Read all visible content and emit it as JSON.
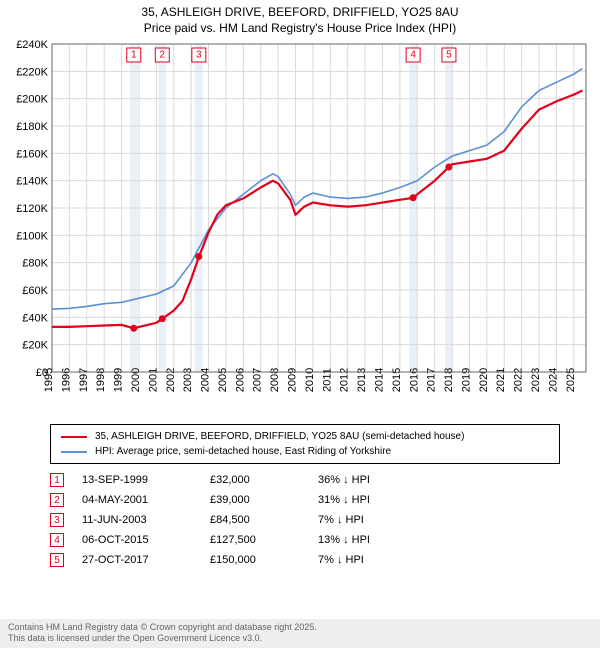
{
  "title_line1": "35, ASHLEIGH DRIVE, BEEFORD, DRIFFIELD, YO25 8AU",
  "title_line2": "Price paid vs. HM Land Registry's House Price Index (HPI)",
  "chart": {
    "type": "line",
    "background_color": "#ffffff",
    "grid_color": "#d9d9d9",
    "axis_color": "#666666",
    "x_years": [
      1995,
      1996,
      1997,
      1998,
      1999,
      2000,
      2001,
      2002,
      2003,
      2004,
      2005,
      2006,
      2007,
      2008,
      2009,
      2010,
      2011,
      2012,
      2013,
      2014,
      2015,
      2016,
      2017,
      2018,
      2019,
      2020,
      2021,
      2022,
      2023,
      2024,
      2025
    ],
    "y_ticks": [
      0,
      20000,
      40000,
      60000,
      80000,
      100000,
      120000,
      140000,
      160000,
      180000,
      200000,
      220000,
      240000
    ],
    "y_tick_labels": [
      "£0",
      "£20K",
      "£40K",
      "£60K",
      "£80K",
      "£100K",
      "£120K",
      "£140K",
      "£160K",
      "£180K",
      "£200K",
      "£220K",
      "£240K"
    ],
    "ylim": [
      0,
      240000
    ],
    "xlim": [
      1995,
      2025.7
    ],
    "series": {
      "property": {
        "label": "35, ASHLEIGH DRIVE, BEEFORD, DRIFFIELD, YO25 8AU (semi-detached house)",
        "color": "#e2001a",
        "width": 2.2,
        "points": [
          [
            1995,
            33000
          ],
          [
            1996,
            33000
          ],
          [
            1997,
            33500
          ],
          [
            1998,
            34000
          ],
          [
            1999,
            34500
          ],
          [
            1999.7,
            32000
          ],
          [
            2000,
            33000
          ],
          [
            2001,
            36000
          ],
          [
            2001.35,
            39000
          ],
          [
            2002,
            45000
          ],
          [
            2002.5,
            52000
          ],
          [
            2003,
            68000
          ],
          [
            2003.45,
            84500
          ],
          [
            2004,
            102000
          ],
          [
            2004.5,
            115000
          ],
          [
            2005,
            122000
          ],
          [
            2006,
            127000
          ],
          [
            2007,
            135000
          ],
          [
            2007.7,
            140000
          ],
          [
            2008,
            138000
          ],
          [
            2008.7,
            126000
          ],
          [
            2009,
            115000
          ],
          [
            2009.5,
            121000
          ],
          [
            2010,
            124000
          ],
          [
            2011,
            122000
          ],
          [
            2012,
            121000
          ],
          [
            2013,
            122000
          ],
          [
            2014,
            124000
          ],
          [
            2015,
            126000
          ],
          [
            2015.76,
            127500
          ],
          [
            2016,
            130000
          ],
          [
            2017,
            140000
          ],
          [
            2017.82,
            150000
          ],
          [
            2018,
            152000
          ],
          [
            2019,
            154000
          ],
          [
            2020,
            156000
          ],
          [
            2021,
            162000
          ],
          [
            2022,
            178000
          ],
          [
            2023,
            192000
          ],
          [
            2024,
            198000
          ],
          [
            2025,
            203000
          ],
          [
            2025.5,
            206000
          ]
        ]
      },
      "hpi": {
        "label": "HPI: Average price, semi-detached house, East Riding of Yorkshire",
        "color": "#5b8fd6",
        "width": 1.6,
        "points": [
          [
            1995,
            46000
          ],
          [
            1996,
            46500
          ],
          [
            1997,
            48000
          ],
          [
            1998,
            50000
          ],
          [
            1999,
            51000
          ],
          [
            2000,
            54000
          ],
          [
            2001,
            57000
          ],
          [
            2002,
            63000
          ],
          [
            2003,
            80000
          ],
          [
            2004,
            104000
          ],
          [
            2005,
            120000
          ],
          [
            2006,
            130000
          ],
          [
            2007,
            140000
          ],
          [
            2007.7,
            145000
          ],
          [
            2008,
            143000
          ],
          [
            2008.7,
            130000
          ],
          [
            2009,
            122000
          ],
          [
            2009.5,
            128000
          ],
          [
            2010,
            131000
          ],
          [
            2011,
            128000
          ],
          [
            2012,
            127000
          ],
          [
            2013,
            128000
          ],
          [
            2014,
            131000
          ],
          [
            2015,
            135000
          ],
          [
            2016,
            140000
          ],
          [
            2017,
            150000
          ],
          [
            2018,
            158000
          ],
          [
            2019,
            162000
          ],
          [
            2020,
            166000
          ],
          [
            2021,
            176000
          ],
          [
            2022,
            194000
          ],
          [
            2023,
            206000
          ],
          [
            2024,
            212000
          ],
          [
            2025,
            218000
          ],
          [
            2025.5,
            222000
          ]
        ]
      }
    },
    "sale_markers": [
      {
        "n": "1",
        "year": 1999.7,
        "price": 32000
      },
      {
        "n": "2",
        "year": 2001.34,
        "price": 39000
      },
      {
        "n": "3",
        "year": 2003.44,
        "price": 84500
      },
      {
        "n": "4",
        "year": 2015.76,
        "price": 127500
      },
      {
        "n": "5",
        "year": 2017.82,
        "price": 150000
      }
    ],
    "marker_box_color": "#e2001a",
    "marker_band_color": "#e8eef7",
    "sale_dot_color": "#e2001a"
  },
  "legend": {
    "rows": [
      {
        "color": "#e2001a",
        "text": "35, ASHLEIGH DRIVE, BEEFORD, DRIFFIELD, YO25 8AU (semi-detached house)"
      },
      {
        "color": "#5b8fd6",
        "text": "HPI: Average price, semi-detached house, East Riding of Yorkshire"
      }
    ]
  },
  "sales": [
    {
      "n": "1",
      "date": "13-SEP-1999",
      "price": "£32,000",
      "delta": "36% ↓ HPI"
    },
    {
      "n": "2",
      "date": "04-MAY-2001",
      "price": "£39,000",
      "delta": "31% ↓ HPI"
    },
    {
      "n": "3",
      "date": "11-JUN-2003",
      "price": "£84,500",
      "delta": "7% ↓ HPI"
    },
    {
      "n": "4",
      "date": "06-OCT-2015",
      "price": "£127,500",
      "delta": "13% ↓ HPI"
    },
    {
      "n": "5",
      "date": "27-OCT-2017",
      "price": "£150,000",
      "delta": "7% ↓ HPI"
    }
  ],
  "marker_color": "#e2001a",
  "footer_line1": "Contains HM Land Registry data © Crown copyright and database right 2025.",
  "footer_line2": "This data is licensed under the Open Government Licence v3.0."
}
